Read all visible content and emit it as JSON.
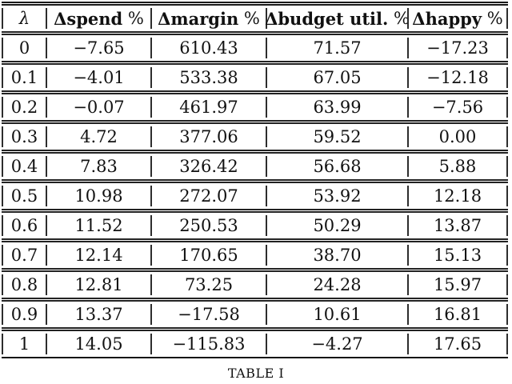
{
  "table": {
    "headers": [
      {
        "label": "λ",
        "pct": ""
      },
      {
        "label": "Δspend",
        "pct": " %"
      },
      {
        "label": "Δmargin",
        "pct": " %"
      },
      {
        "label": "Δbudget util.",
        "pct": " %"
      },
      {
        "label": "Δhappy",
        "pct": " %"
      }
    ],
    "rows": [
      [
        "0",
        "−7.65",
        "610.43",
        "71.57",
        "−17.23"
      ],
      [
        "0.1",
        "−4.01",
        "533.38",
        "67.05",
        "−12.18"
      ],
      [
        "0.2",
        "−0.07",
        "461.97",
        "63.99",
        "−7.56"
      ],
      [
        "0.3",
        "4.72",
        "377.06",
        "59.52",
        "0.00"
      ],
      [
        "0.4",
        "7.83",
        "326.42",
        "56.68",
        "5.88"
      ],
      [
        "0.5",
        "10.98",
        "272.07",
        "53.92",
        "12.18"
      ],
      [
        "0.6",
        "11.52",
        "250.53",
        "50.29",
        "13.87"
      ],
      [
        "0.7",
        "12.14",
        "170.65",
        "38.70",
        "15.13"
      ],
      [
        "0.8",
        "12.81",
        "73.25",
        "24.28",
        "15.97"
      ],
      [
        "0.9",
        "13.37",
        "−17.58",
        "10.61",
        "16.81"
      ],
      [
        "1",
        "14.05",
        "−115.83",
        "−4.27",
        "17.65"
      ]
    ]
  },
  "caption": "TABLE I",
  "colors": {
    "text": "#111111",
    "rule": "#1a1a1a",
    "background": "#ffffff"
  }
}
